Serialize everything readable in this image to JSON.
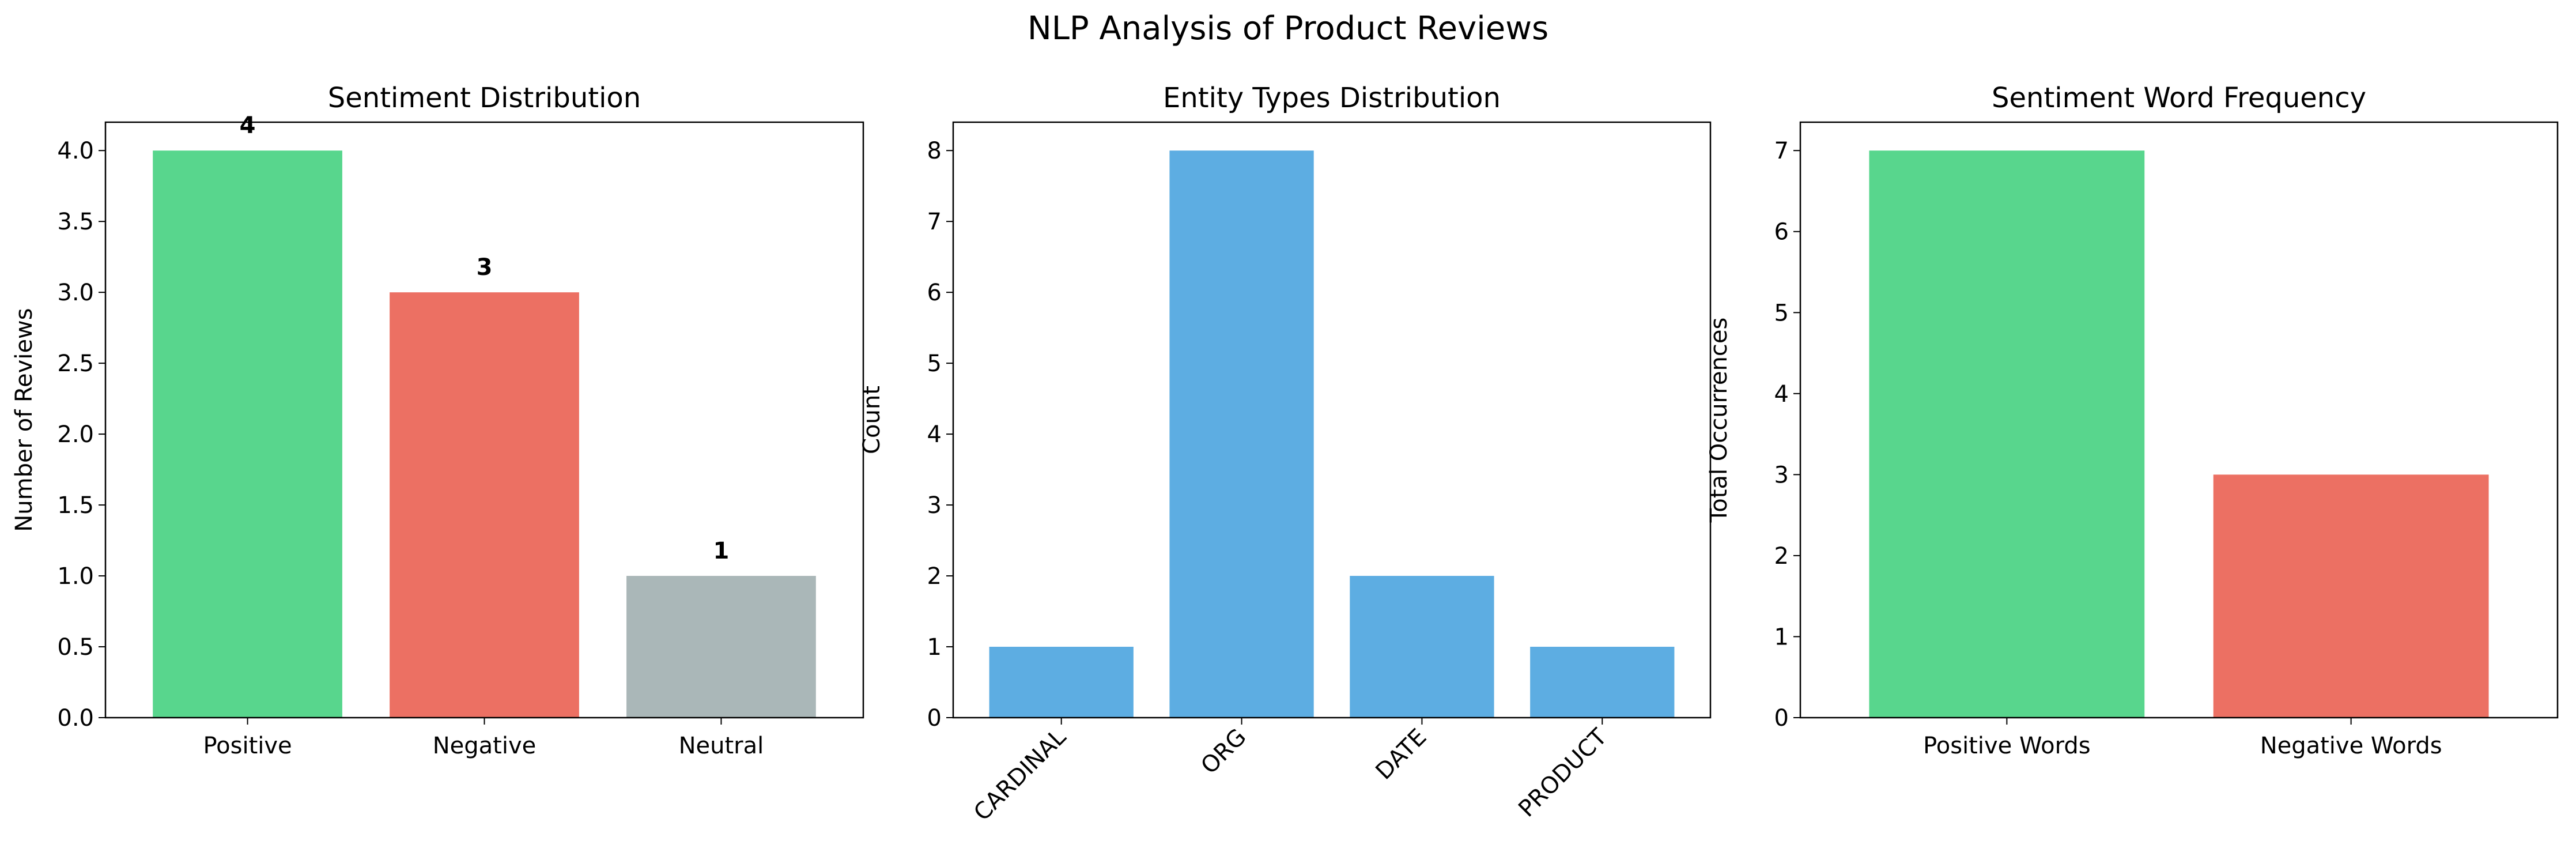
{
  "suptitle": "NLP Analysis of Product Reviews",
  "chart_data": [
    {
      "type": "bar",
      "title": "Sentiment Distribution",
      "categories": [
        "Positive",
        "Negative",
        "Neutral"
      ],
      "values": [
        4,
        3,
        1
      ],
      "colors": [
        "#58d68d",
        "#ec7063",
        "#aab7b8"
      ],
      "value_labels": [
        "4",
        "3",
        "1"
      ],
      "xlabel": "",
      "ylabel": "Number of Reviews",
      "ylim": [
        0,
        4.2
      ],
      "yticks": [
        0.0,
        0.5,
        1.0,
        1.5,
        2.0,
        2.5,
        3.0,
        3.5,
        4.0
      ],
      "ytick_labels": [
        "0.0",
        "0.5",
        "1.0",
        "1.5",
        "2.0",
        "2.5",
        "3.0",
        "3.5",
        "4.0"
      ],
      "xtick_rotation": 0,
      "grid": false
    },
    {
      "type": "bar",
      "title": "Entity Types Distribution",
      "categories": [
        "CARDINAL",
        "ORG",
        "DATE",
        "PRODUCT"
      ],
      "values": [
        1,
        8,
        2,
        1
      ],
      "colors": [
        "#5dade2",
        "#5dade2",
        "#5dade2",
        "#5dade2"
      ],
      "xlabel": "",
      "ylabel": "Count",
      "ylim": [
        0,
        8.4
      ],
      "yticks": [
        0,
        1,
        2,
        3,
        4,
        5,
        6,
        7,
        8
      ],
      "ytick_labels": [
        "0",
        "1",
        "2",
        "3",
        "4",
        "5",
        "6",
        "7",
        "8"
      ],
      "xtick_rotation": 45,
      "grid": false
    },
    {
      "type": "bar",
      "title": "Sentiment Word Frequency",
      "categories": [
        "Positive Words",
        "Negative Words"
      ],
      "values": [
        7,
        3
      ],
      "colors": [
        "#58d68d",
        "#ec7063"
      ],
      "xlabel": "",
      "ylabel": "Total Occurrences",
      "ylim": [
        0,
        7.35
      ],
      "yticks": [
        0,
        1,
        2,
        3,
        4,
        5,
        6,
        7
      ],
      "ytick_labels": [
        "0",
        "1",
        "2",
        "3",
        "4",
        "5",
        "6",
        "7"
      ],
      "xtick_rotation": 0,
      "grid": false
    }
  ]
}
